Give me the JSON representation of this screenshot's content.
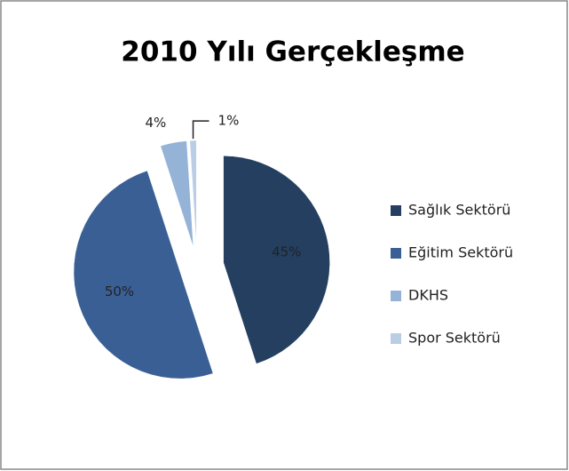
{
  "chart_data": {
    "type": "pie",
    "title": "2010 Yılı Gerçekleşme",
    "categories": [
      "Sağlık Sektörü",
      "Eğitim Sektörü",
      "DKHS",
      "Spor Sektörü"
    ],
    "values": [
      45,
      50,
      4,
      1
    ],
    "value_labels": [
      "45%",
      "50%",
      "4%",
      "1%"
    ],
    "colors": [
      "#243f60",
      "#3a5f94",
      "#95b3d7",
      "#b9cde5"
    ],
    "legend": "right"
  }
}
